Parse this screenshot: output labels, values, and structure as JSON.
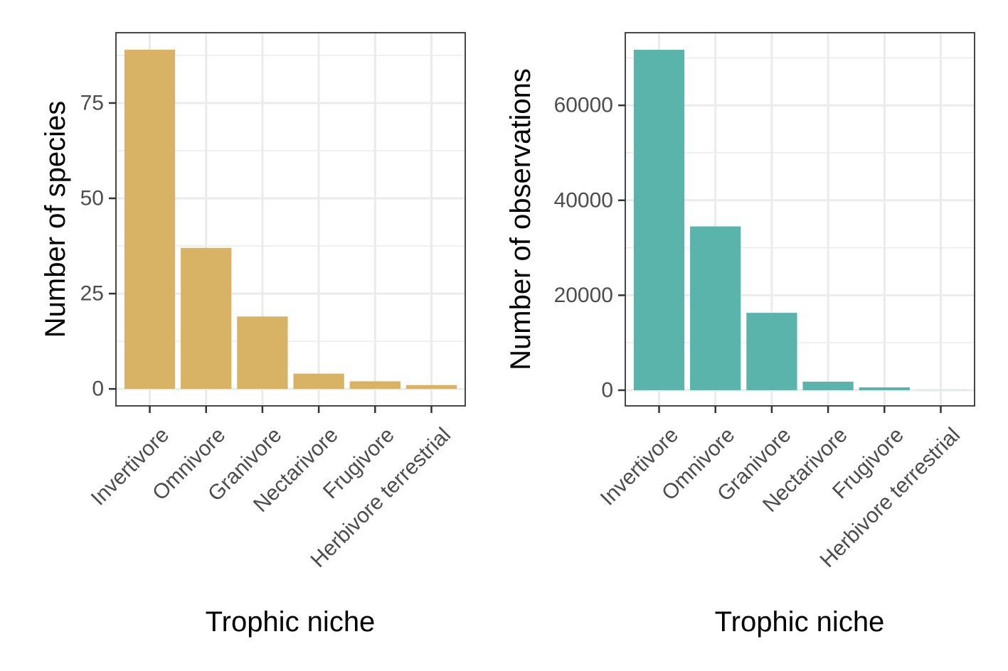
{
  "chart_data": [
    {
      "type": "bar",
      "categories": [
        "Invertivore",
        "Omnivore",
        "Granivore",
        "Nectarivore",
        "Frugivore",
        "Herbivore terrestrial"
      ],
      "values": [
        89,
        37,
        19,
        4,
        2,
        1
      ],
      "xlabel": "Trophic niche",
      "ylabel": "Number of species",
      "yticks": [
        0,
        25,
        50,
        75
      ],
      "ytick_labels": [
        "0",
        "25",
        "50",
        "75"
      ],
      "ylim": [
        -4.45,
        93.45
      ],
      "grid": true,
      "color": "#D8B365"
    },
    {
      "type": "bar",
      "categories": [
        "Invertivore",
        "Omnivore",
        "Granivore",
        "Nectarivore",
        "Frugivore",
        "Herbivore terrestrial"
      ],
      "values": [
        71700,
        34500,
        16300,
        1800,
        600,
        20
      ],
      "xlabel": "Trophic niche",
      "ylabel": "Number of observations",
      "yticks": [
        0,
        20000,
        40000,
        60000
      ],
      "ytick_labels": [
        "0",
        "20000",
        "40000",
        "60000"
      ],
      "ylim": [
        -3300,
        75300
      ],
      "grid": true,
      "color": "#5AB4AC"
    }
  ]
}
